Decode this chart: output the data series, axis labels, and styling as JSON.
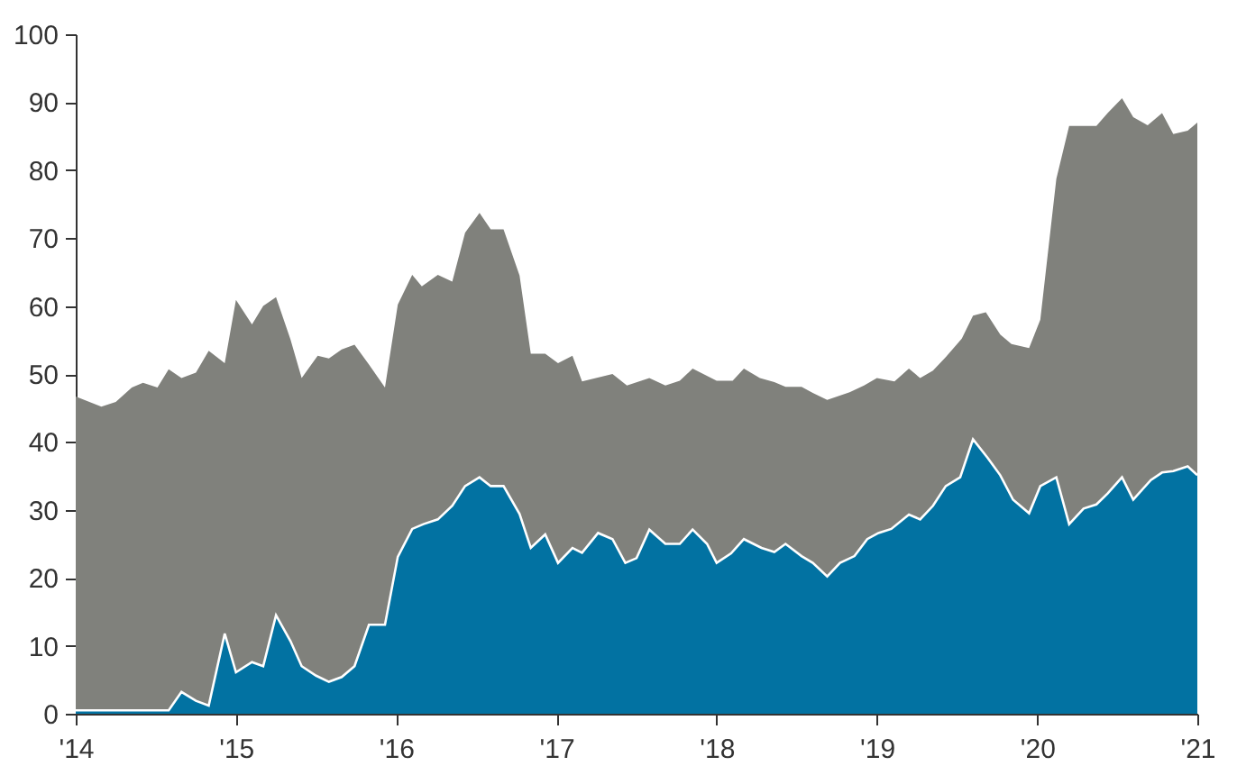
{
  "chart_data": {
    "type": "area",
    "series": [
      {
        "color": "#80817c",
        "x": [
          2014.0,
          2014.16,
          2014.25,
          2014.35,
          2014.42,
          2014.51,
          2014.58,
          2014.66,
          2014.75,
          2014.83,
          2014.93,
          2015.0,
          2015.1,
          2015.17,
          2015.25,
          2015.34,
          2015.41,
          2015.51,
          2015.58,
          2015.66,
          2015.74,
          2015.83,
          2015.93,
          2016.01,
          2016.1,
          2016.16,
          2016.26,
          2016.35,
          2016.43,
          2016.52,
          2016.59,
          2016.67,
          2016.77,
          2016.84,
          2016.93,
          2017.01,
          2017.1,
          2017.16,
          2017.35,
          2017.44,
          2017.58,
          2017.68,
          2017.77,
          2017.85,
          2018.0,
          2018.1,
          2018.17,
          2018.27,
          2018.36,
          2018.43,
          2018.53,
          2018.6,
          2018.69,
          2018.83,
          2018.92,
          2019.0,
          2019.11,
          2019.2,
          2019.27,
          2019.35,
          2019.43,
          2019.53,
          2019.6,
          2019.68,
          2019.77,
          2019.84,
          2019.95,
          2020.02,
          2020.12,
          2020.2,
          2020.37,
          2020.44,
          2020.53,
          2020.6,
          2020.69,
          2020.78,
          2020.85,
          2020.94,
          2021.0
        ],
        "values": [
          46.7,
          45.2,
          45.9,
          48.0,
          48.7,
          48.0,
          50.7,
          49.4,
          50.2,
          53.4,
          51.6,
          60.9,
          57.3,
          60.0,
          61.3,
          55.1,
          49.4,
          52.7,
          52.3,
          53.6,
          54.3,
          51.4,
          48.0,
          60.2,
          64.6,
          62.9,
          64.6,
          63.6,
          70.8,
          73.7,
          71.3,
          71.3,
          64.5,
          53.0,
          53.0,
          51.6,
          52.7,
          48.9,
          50.0,
          48.3,
          49.4,
          48.3,
          49.0,
          50.8,
          49.0,
          49.0,
          50.8,
          49.4,
          48.8,
          48.1,
          48.1,
          47.2,
          46.2,
          47.3,
          48.3,
          49.4,
          48.9,
          50.8,
          49.4,
          50.5,
          52.5,
          55.2,
          58.6,
          59.1,
          55.8,
          54.4,
          53.8,
          58.0,
          78.7,
          86.5,
          86.5,
          88.4,
          90.6,
          87.8,
          86.6,
          88.4,
          85.3,
          85.8,
          87.0
        ]
      },
      {
        "color": "#0272a2",
        "x": [
          2014.0,
          2014.58,
          2014.66,
          2014.75,
          2014.83,
          2014.93,
          2015.0,
          2015.1,
          2015.17,
          2015.25,
          2015.34,
          2015.41,
          2015.5,
          2015.58,
          2015.66,
          2015.74,
          2015.83,
          2015.93,
          2016.01,
          2016.1,
          2016.17,
          2016.26,
          2016.35,
          2016.43,
          2016.52,
          2016.59,
          2016.67,
          2016.77,
          2016.84,
          2016.93,
          2017.01,
          2017.1,
          2017.16,
          2017.26,
          2017.35,
          2017.43,
          2017.5,
          2017.58,
          2017.68,
          2017.77,
          2017.85,
          2017.94,
          2018.0,
          2018.09,
          2018.17,
          2018.28,
          2018.36,
          2018.43,
          2018.53,
          2018.6,
          2018.69,
          2018.77,
          2018.86,
          2018.94,
          2019.01,
          2019.09,
          2019.2,
          2019.27,
          2019.35,
          2019.43,
          2019.52,
          2019.6,
          2019.69,
          2019.77,
          2019.85,
          2019.95,
          2020.02,
          2020.12,
          2020.2,
          2020.29,
          2020.37,
          2020.44,
          2020.53,
          2020.6,
          2020.71,
          2020.78,
          2020.85,
          2020.94,
          2021.0
        ],
        "values": [
          0.5,
          0.5,
          3.2,
          1.9,
          1.2,
          11.8,
          6.1,
          7.6,
          7.0,
          14.5,
          10.7,
          7.0,
          5.6,
          4.7,
          5.4,
          7.0,
          13.1,
          13.1,
          23.1,
          27.2,
          27.9,
          28.6,
          30.6,
          33.5,
          34.8,
          33.5,
          33.5,
          29.4,
          24.4,
          26.4,
          22.2,
          24.4,
          23.7,
          26.6,
          25.7,
          22.2,
          22.9,
          27.1,
          25.0,
          25.0,
          27.1,
          25.0,
          22.2,
          23.6,
          25.7,
          24.4,
          23.8,
          25.0,
          23.2,
          22.2,
          20.2,
          22.2,
          23.2,
          25.7,
          26.6,
          27.2,
          29.3,
          28.6,
          30.6,
          33.5,
          34.8,
          40.4,
          37.7,
          35.1,
          31.5,
          29.5,
          33.5,
          34.8,
          27.9,
          30.2,
          30.8,
          32.4,
          34.8,
          31.5,
          34.4,
          35.5,
          35.7,
          36.4,
          35.1
        ]
      }
    ],
    "xlim": [
      2014,
      2021
    ],
    "xticks": [
      {
        "value": 2014,
        "label": "'14"
      },
      {
        "value": 2015,
        "label": "'15"
      },
      {
        "value": 2016,
        "label": "'16"
      },
      {
        "value": 2017,
        "label": "'17"
      },
      {
        "value": 2018,
        "label": "'18"
      },
      {
        "value": 2019,
        "label": "'19"
      },
      {
        "value": 2020,
        "label": "'20"
      },
      {
        "value": 2021,
        "label": "'21"
      }
    ],
    "ylim": [
      0,
      100
    ],
    "yticks": [
      0,
      10,
      20,
      30,
      40,
      50,
      60,
      70,
      80,
      90,
      100
    ],
    "grid": false
  }
}
